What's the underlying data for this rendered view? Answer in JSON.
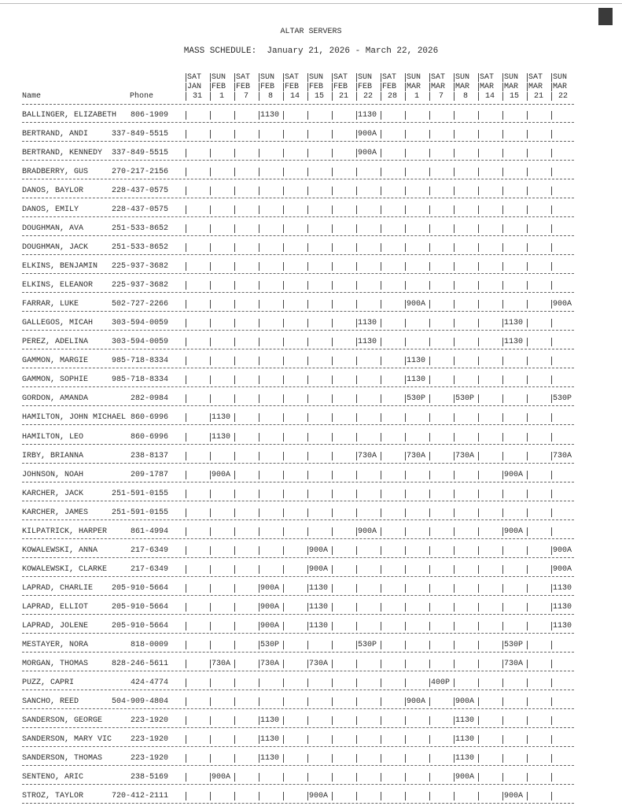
{
  "title": "ALTAR SERVERS",
  "subtitle": "MASS SCHEDULE:  January 21, 2026 - March 22, 2026",
  "headers": {
    "name": "Name",
    "phone": "Phone"
  },
  "columns": [
    {
      "day": "SAT",
      "month": "JAN",
      "date": "31"
    },
    {
      "day": "SUN",
      "month": "FEB",
      "date": "1"
    },
    {
      "day": "SAT",
      "month": "FEB",
      "date": "7"
    },
    {
      "day": "SUN",
      "month": "FEB",
      "date": "8"
    },
    {
      "day": "SAT",
      "month": "FEB",
      "date": "14"
    },
    {
      "day": "SUN",
      "month": "FEB",
      "date": "15"
    },
    {
      "day": "SAT",
      "month": "FEB",
      "date": "21"
    },
    {
      "day": "SUN",
      "month": "FEB",
      "date": "22"
    },
    {
      "day": "SAT",
      "month": "FEB",
      "date": "28"
    },
    {
      "day": "SUN",
      "month": "MAR",
      "date": "1"
    },
    {
      "day": "SAT",
      "month": "MAR",
      "date": "7"
    },
    {
      "day": "SUN",
      "month": "MAR",
      "date": "8"
    },
    {
      "day": "SAT",
      "month": "MAR",
      "date": "14"
    },
    {
      "day": "SUN",
      "month": "MAR",
      "date": "15"
    },
    {
      "day": "SAT",
      "month": "MAR",
      "date": "21"
    },
    {
      "day": "SUN",
      "month": "MAR",
      "date": "22"
    }
  ],
  "rows": [
    {
      "name": "BALLINGER, ELIZABETH",
      "phone": "806-1909",
      "slots": {
        "3": "1130",
        "7": "1130"
      }
    },
    {
      "name": "BERTRAND, ANDI",
      "phone": "337-849-5515",
      "slots": {
        "7": "900A"
      }
    },
    {
      "name": "BERTRAND, KENNEDY",
      "phone": "337-849-5515",
      "slots": {
        "7": "900A"
      }
    },
    {
      "name": "BRADBERRY, GUS",
      "phone": "270-217-2156",
      "slots": {}
    },
    {
      "name": "DANOS, BAYLOR",
      "phone": "228-437-0575",
      "slots": {}
    },
    {
      "name": "DANOS, EMILY",
      "phone": "228-437-0575",
      "slots": {}
    },
    {
      "name": "DOUGHMAN, AVA",
      "phone": "251-533-8652",
      "slots": {}
    },
    {
      "name": "DOUGHMAN, JACK",
      "phone": "251-533-8652",
      "slots": {}
    },
    {
      "name": "ELKINS, BENJAMIN",
      "phone": "225-937-3682",
      "slots": {}
    },
    {
      "name": "ELKINS, ELEANOR",
      "phone": "225-937-3682",
      "slots": {}
    },
    {
      "name": "FARRAR, LUKE",
      "phone": "502-727-2266",
      "slots": {
        "9": "900A",
        "15": "900A"
      }
    },
    {
      "name": "GALLEGOS, MICAH",
      "phone": "303-594-0059",
      "slots": {
        "7": "1130",
        "13": "1130"
      }
    },
    {
      "name": "PEREZ, ADELINA",
      "phone": "303-594-0059",
      "slots": {
        "7": "1130",
        "13": "1130"
      }
    },
    {
      "name": "GAMMON, MARGIE",
      "phone": "985-718-8334",
      "slots": {
        "9": "1130"
      }
    },
    {
      "name": "GAMMON, SOPHIE",
      "phone": "985-718-8334",
      "slots": {
        "9": "1130"
      }
    },
    {
      "name": "GORDON, AMANDA",
      "phone": "282-0984",
      "slots": {
        "9": "530P",
        "11": "530P",
        "15": "530P"
      }
    },
    {
      "name": "HAMILTON, JOHN MICHAEL",
      "phone": "860-6996",
      "slots": {
        "1": "1130"
      }
    },
    {
      "name": "HAMILTON, LEO",
      "phone": "860-6996",
      "slots": {
        "1": "1130"
      }
    },
    {
      "name": "IRBY, BRIANNA",
      "phone": "238-8137",
      "slots": {
        "7": "730A",
        "9": "730A",
        "11": "730A",
        "15": "730A"
      }
    },
    {
      "name": "JOHNSON, NOAH",
      "phone": "209-1787",
      "slots": {
        "1": "900A",
        "13": "900A"
      }
    },
    {
      "name": "KARCHER, JACK",
      "phone": "251-591-0155",
      "slots": {}
    },
    {
      "name": "KARCHER, JAMES",
      "phone": "251-591-0155",
      "slots": {}
    },
    {
      "name": "KILPATRICK, HARPER",
      "phone": "861-4994",
      "slots": {
        "7": "900A",
        "13": "900A"
      }
    },
    {
      "name": "KOWALEWSKI, ANNA",
      "phone": "217-6349",
      "slots": {
        "5": "900A",
        "15": "900A"
      }
    },
    {
      "name": "KOWALEWSKI, CLARKE",
      "phone": "217-6349",
      "slots": {
        "5": "900A",
        "15": "900A"
      }
    },
    {
      "name": "LAPRAD, CHARLIE",
      "phone": "205-910-5664",
      "slots": {
        "3": "900A",
        "5": "1130",
        "15": "1130"
      }
    },
    {
      "name": "LAPRAD, ELLIOT",
      "phone": "205-910-5664",
      "slots": {
        "3": "900A",
        "5": "1130",
        "15": "1130"
      }
    },
    {
      "name": "LAPRAD, JOLENE",
      "phone": "205-910-5664",
      "slots": {
        "3": "900A",
        "5": "1130",
        "15": "1130"
      }
    },
    {
      "name": "MESTAYER, NORA",
      "phone": "818-0009",
      "slots": {
        "3": "530P",
        "7": "530P",
        "13": "530P"
      }
    },
    {
      "name": "MORGAN, THOMAS",
      "phone": "828-246-5611",
      "slots": {
        "1": "730A",
        "3": "730A",
        "5": "730A",
        "13": "730A"
      }
    },
    {
      "name": "PUZZ, CAPRI",
      "phone": "424-4774",
      "slots": {
        "10": "400P"
      }
    },
    {
      "name": "SANCHO, REED",
      "phone": "504-909-4804",
      "slots": {
        "9": "900A",
        "11": "900A"
      }
    },
    {
      "name": "SANDERSON, GEORGE",
      "phone": "223-1920",
      "slots": {
        "3": "1130",
        "11": "1130"
      }
    },
    {
      "name": "SANDERSON, MARY VIC",
      "phone": "223-1920",
      "slots": {
        "3": "1130",
        "11": "1130"
      }
    },
    {
      "name": "SANDERSON, THOMAS",
      "phone": "223-1920",
      "slots": {
        "3": "1130",
        "11": "1130"
      }
    },
    {
      "name": "SENTENO, ARIC",
      "phone": "238-5169",
      "slots": {
        "1": "900A",
        "11": "900A"
      }
    },
    {
      "name": "STROZ, TAYLOR",
      "phone": "720-412-2111",
      "slots": {
        "5": "900A",
        "13": "900A"
      }
    }
  ]
}
